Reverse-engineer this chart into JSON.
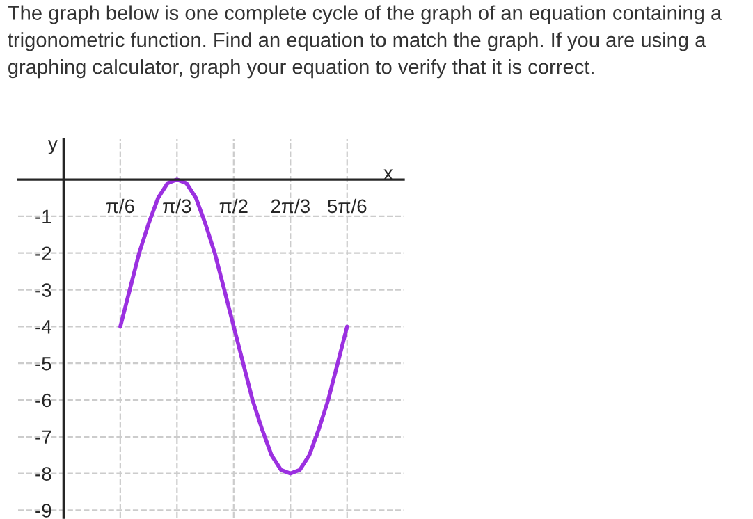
{
  "chart_data": {
    "type": "line",
    "title": "The graph below is one complete cycle of the graph of an equation containing a trigonometric function. Find an equation to match the graph. If you are using a graphing calculator, graph your equation to verify that it is correct.",
    "xlabel": "x",
    "ylabel": "y",
    "x": [
      0.524,
      0.611,
      0.698,
      0.785,
      0.873,
      0.96,
      1.047,
      1.134,
      1.222,
      1.309,
      1.396,
      1.484,
      1.571,
      1.658,
      1.745,
      1.833,
      1.92,
      2.007,
      2.094,
      2.182,
      2.269,
      2.356,
      2.443,
      2.531,
      2.618
    ],
    "series": [
      {
        "color": "#9b30e0",
        "values": [
          -4,
          -3,
          -2,
          -1.2,
          -0.5,
          -0.1,
          0,
          -0.1,
          -0.5,
          -1.2,
          -2,
          -3,
          -4,
          -5,
          -6,
          -6.8,
          -7.5,
          -7.9,
          -8,
          -7.9,
          -7.5,
          -6.8,
          -6,
          -5,
          -4
        ]
      }
    ],
    "xlim": [
      -0.42,
      3.14
    ],
    "ylim": [
      -9.2,
      1.1
    ],
    "xticks": [
      {
        "value": 0.5236,
        "label": "π/6"
      },
      {
        "value": 1.0472,
        "label": "π/3"
      },
      {
        "value": 1.5708,
        "label": "π/2"
      },
      {
        "value": 2.0944,
        "label": "2π/3"
      },
      {
        "value": 2.618,
        "label": "5π/6"
      }
    ],
    "yticks": [
      -1,
      -2,
      -3,
      -4,
      -5,
      -6,
      -7,
      -8,
      -9
    ],
    "grid": true,
    "legend": false,
    "marker": "none",
    "line_style": "solid"
  }
}
